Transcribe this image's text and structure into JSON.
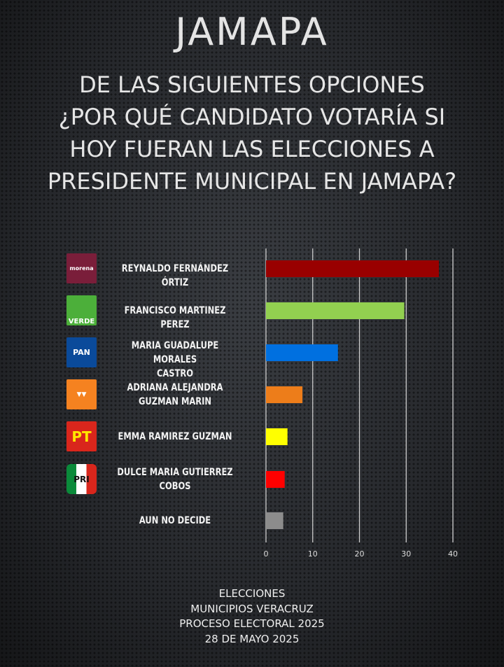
{
  "title": "JAMAPA",
  "question": [
    "DE LAS SIGUIENTES OPCIONES",
    "¿POR QUÉ CANDIDATO VOTARÍA SI",
    "HOY FUERAN LAS ELECCIONES A",
    "PRESIDENTE MUNICIPAL EN JAMAPA?"
  ],
  "parties": [
    {
      "logo": "morena",
      "name": [
        "REYNALDO FERNÁNDEZ ÓRTIZ"
      ]
    },
    {
      "logo": "VERDE",
      "name": [
        "FRANCISCO MARTINEZ PEREZ"
      ]
    },
    {
      "logo": "PAN",
      "name": [
        "MARIA GUADALUPE MORALES",
        "CASTRO"
      ]
    },
    {
      "logo": "MC",
      "name": [
        "ADRIANA ALEJANDRA",
        "GUZMAN MARIN"
      ]
    },
    {
      "logo": "PT",
      "name": [
        "EMMA RAMIREZ GUZMAN"
      ]
    },
    {
      "logo": "PRI",
      "name": [
        "DULCE MARIA GUTIERREZ",
        "COBOS"
      ]
    },
    {
      "logo": "",
      "name": [
        "AUN NO DECIDE"
      ]
    }
  ],
  "chart_data": {
    "type": "bar",
    "orientation": "horizontal",
    "categories": [
      "REYNALDO FERNÁNDEZ ÓRTIZ",
      "FRANCISCO MARTINEZ PEREZ",
      "MARIA GUADALUPE MORALES CASTRO",
      "ADRIANA ALEJANDRA GUZMAN MARIN",
      "EMMA RAMIREZ GUZMAN",
      "DULCE MARIA GUTIERREZ COBOS",
      "AUN NO DECIDE"
    ],
    "values": [
      37,
      29.6,
      15.4,
      7.8,
      4.6,
      4.0,
      3.7
    ],
    "colors": [
      "#990000",
      "#92d050",
      "#0070e0",
      "#ed7d1a",
      "#ffff00",
      "#ff0000",
      "#8c8c8c"
    ],
    "xlim": [
      0,
      40
    ],
    "ticks": [
      "0",
      "10",
      "20",
      "30",
      "40"
    ],
    "grid": true
  },
  "footer": [
    "ELECCIONES",
    "MUNICIPIOS VERACRUZ",
    "PROCESO ELECTORAL 2025",
    "28 DE MAYO 2025"
  ]
}
